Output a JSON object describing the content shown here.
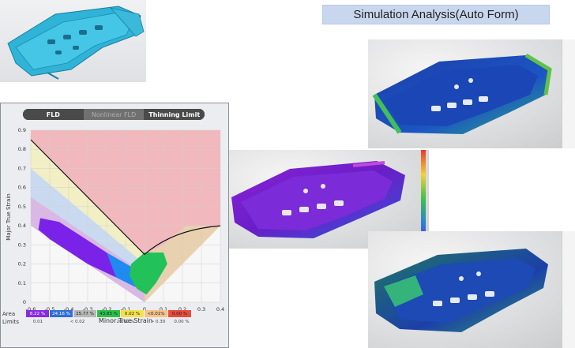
{
  "title": "Simulation Analysis(Auto Form)",
  "fld": {
    "tabs": [
      "FLD",
      "Nonlinear FLD",
      "Thinning Limit"
    ],
    "active_tab": "FLD",
    "xlabel": "Minor True Strain",
    "ylabel": "Major True Strain",
    "xticks": [
      "-0.6",
      "-0.5",
      "-0.4",
      "-0.3",
      "-0.2",
      "-0.1",
      "0",
      "0.1",
      "0.2",
      "0.3",
      "0.4"
    ],
    "yticks": [
      "0",
      "0.1",
      "0.2",
      "0.3",
      "0.4",
      "0.5",
      "0.6",
      "0.7",
      "0.8",
      "0.9"
    ],
    "area_label": "Area",
    "limits_label": "Limits",
    "area_values": [
      "6.22 %",
      "24.16 %",
      "25.77 %",
      "43.83 %",
      "0.02 %",
      "<0.01%",
      "0.00 %"
    ],
    "area_colors": [
      "#8a2be2",
      "#2f6fd6",
      "#b8b8b8",
      "#2cc04a",
      "#f4e24a",
      "#f6c28a",
      "#e84b3c"
    ],
    "limits_values": [
      "0.01",
      "< 0.02",
      "20.00 %",
      "> 0.30",
      "0.00 %"
    ]
  },
  "chart_data": {
    "type": "scatter",
    "xlabel": "Minor True Strain",
    "ylabel": "Major True Strain",
    "xlim": [
      -0.6,
      0.4
    ],
    "ylim": [
      0,
      0.9
    ],
    "grid": true
  },
  "colors": {
    "zone_red": "#f1b8bd",
    "zone_yellow": "#f3efc4",
    "zone_blue": "#c9daf0",
    "zone_purple": "#d9b8e6",
    "zone_tan": "#e9d0ae",
    "points_purple": "#7b22e8",
    "points_blue": "#1f8bf0",
    "points_green": "#22c15a"
  }
}
